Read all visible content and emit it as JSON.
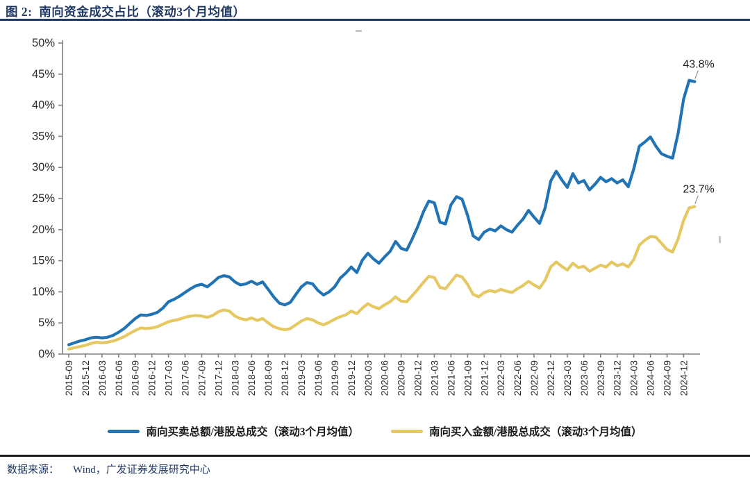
{
  "figure": {
    "title": "图 2:  南向资金成交占比（滚动3个月均值）",
    "source_label": "数据来源：",
    "source_text": "Wind，广发证券发展研究中心"
  },
  "colors": {
    "title_navy": "#1F3864",
    "line_blue": "#2273B4",
    "line_yellow": "#E6C862",
    "axis": "#808080",
    "tick_text": "#2b2b2b",
    "annotation_text": "#1a1a1a",
    "leader": "#a0a0a0"
  },
  "legend": [
    {
      "label": "南向买卖总额/港股总成交（滚动3个月均值）",
      "color": "#2273B4"
    },
    {
      "label": "南向买入金额/港股总成交（滚动3个月均值）",
      "color": "#E6C862"
    }
  ],
  "annotations": [
    {
      "text": "43.8%",
      "series_index": 0
    },
    {
      "text": "23.7%",
      "series_index": 1
    }
  ],
  "chart_data": {
    "type": "line",
    "title": "南向资金成交占比（滚动3个月均值）",
    "xlabel": "",
    "ylabel": "",
    "ylim": [
      0,
      50
    ],
    "grid": false,
    "legend_position": "bottom",
    "x_label_rotation": -90,
    "y_tick_labels": [
      "0%",
      "5%",
      "10%",
      "15%",
      "20%",
      "25%",
      "30%",
      "35%",
      "40%",
      "45%",
      "50%"
    ],
    "x_tick_labels": [
      "2015-09",
      "2015-12",
      "2016-03",
      "2016-06",
      "2016-09",
      "2016-12",
      "2017-03",
      "2017-06",
      "2017-09",
      "2017-12",
      "2018-03",
      "2018-06",
      "2018-09",
      "2018-12",
      "2019-03",
      "2019-06",
      "2019-09",
      "2019-12",
      "2020-03",
      "2020-06",
      "2020-09",
      "2020-12",
      "2021-03",
      "2021-06",
      "2021-09",
      "2021-12",
      "2022-03",
      "2022-06",
      "2022-09",
      "2022-12",
      "2023-03",
      "2023-06",
      "2023-09",
      "2023-12",
      "2024-03",
      "2024-06",
      "2024-09",
      "2024-12"
    ],
    "x": [
      "2015-09",
      "2015-10",
      "2015-11",
      "2015-12",
      "2016-01",
      "2016-02",
      "2016-03",
      "2016-04",
      "2016-05",
      "2016-06",
      "2016-07",
      "2016-08",
      "2016-09",
      "2016-10",
      "2016-11",
      "2016-12",
      "2017-01",
      "2017-02",
      "2017-03",
      "2017-04",
      "2017-05",
      "2017-06",
      "2017-07",
      "2017-08",
      "2017-09",
      "2017-10",
      "2017-11",
      "2017-12",
      "2018-01",
      "2018-02",
      "2018-03",
      "2018-04",
      "2018-05",
      "2018-06",
      "2018-07",
      "2018-08",
      "2018-09",
      "2018-10",
      "2018-11",
      "2018-12",
      "2019-01",
      "2019-02",
      "2019-03",
      "2019-04",
      "2019-05",
      "2019-06",
      "2019-07",
      "2019-08",
      "2019-09",
      "2019-10",
      "2019-11",
      "2019-12",
      "2020-01",
      "2020-02",
      "2020-03",
      "2020-04",
      "2020-05",
      "2020-06",
      "2020-07",
      "2020-08",
      "2020-09",
      "2020-10",
      "2020-11",
      "2020-12",
      "2021-01",
      "2021-02",
      "2021-03",
      "2021-04",
      "2021-05",
      "2021-06",
      "2021-07",
      "2021-08",
      "2021-09",
      "2021-10",
      "2021-11",
      "2021-12",
      "2022-01",
      "2022-02",
      "2022-03",
      "2022-04",
      "2022-05",
      "2022-06",
      "2022-07",
      "2022-08",
      "2022-09",
      "2022-10",
      "2022-11",
      "2022-12",
      "2023-01",
      "2023-02",
      "2023-03",
      "2023-04",
      "2023-05",
      "2023-06",
      "2023-07",
      "2023-08",
      "2023-09",
      "2023-10",
      "2023-11",
      "2023-12",
      "2024-01",
      "2024-02",
      "2024-03",
      "2024-04",
      "2024-05",
      "2024-06",
      "2024-07",
      "2024-08",
      "2024-09",
      "2024-10",
      "2024-11",
      "2024-12",
      "2025-01",
      "2025-02"
    ],
    "series": [
      {
        "name": "南向买卖总额/港股总成交（滚动3个月均值）",
        "color": "#2273B4",
        "end_label": "43.8%",
        "values": [
          1.5,
          1.8,
          2.1,
          2.3,
          2.6,
          2.7,
          2.6,
          2.7,
          3.0,
          3.5,
          4.1,
          4.9,
          5.7,
          6.3,
          6.2,
          6.4,
          6.7,
          7.4,
          8.4,
          8.8,
          9.3,
          9.9,
          10.5,
          11.0,
          11.2,
          10.8,
          11.5,
          12.3,
          12.6,
          12.4,
          11.6,
          11.1,
          11.3,
          11.7,
          11.2,
          11.6,
          10.4,
          9.2,
          8.2,
          7.9,
          8.3,
          9.6,
          10.8,
          11.5,
          11.3,
          10.2,
          9.5,
          10.0,
          10.8,
          12.2,
          13.0,
          14.0,
          13.1,
          15.1,
          16.2,
          15.3,
          14.6,
          15.6,
          16.5,
          18.1,
          17.0,
          16.7,
          18.5,
          20.5,
          22.8,
          24.6,
          24.3,
          21.2,
          20.9,
          24.0,
          25.3,
          24.9,
          22.3,
          19.0,
          18.4,
          19.6,
          20.1,
          19.8,
          20.6,
          20.0,
          19.6,
          20.7,
          21.7,
          23.1,
          22.0,
          21.0,
          23.5,
          27.8,
          29.4,
          28.0,
          26.8,
          29.0,
          27.5,
          27.9,
          26.4,
          27.3,
          28.4,
          27.7,
          28.2,
          27.5,
          28.0,
          26.9,
          29.8,
          33.4,
          34.1,
          34.9,
          33.4,
          32.2,
          31.8,
          31.5,
          35.5,
          41.0,
          44.0,
          43.8
        ]
      },
      {
        "name": "南向买入金额/港股总成交（滚动3个月均值）",
        "color": "#E6C862",
        "end_label": "23.7%",
        "values": [
          0.8,
          1.0,
          1.2,
          1.4,
          1.7,
          1.9,
          1.8,
          1.9,
          2.1,
          2.4,
          2.8,
          3.3,
          3.8,
          4.2,
          4.1,
          4.2,
          4.4,
          4.8,
          5.2,
          5.4,
          5.6,
          5.9,
          6.1,
          6.2,
          6.1,
          5.9,
          6.2,
          6.8,
          7.1,
          6.9,
          6.1,
          5.7,
          5.5,
          5.8,
          5.4,
          5.7,
          5.0,
          4.4,
          4.1,
          3.9,
          4.1,
          4.7,
          5.3,
          5.7,
          5.5,
          5.0,
          4.7,
          5.1,
          5.6,
          6.0,
          6.3,
          6.9,
          6.5,
          7.4,
          8.1,
          7.6,
          7.3,
          7.9,
          8.4,
          9.2,
          8.5,
          8.4,
          9.4,
          10.4,
          11.5,
          12.5,
          12.3,
          10.7,
          10.5,
          11.6,
          12.7,
          12.4,
          11.2,
          9.6,
          9.2,
          9.9,
          10.2,
          10.0,
          10.4,
          10.1,
          9.9,
          10.5,
          11.0,
          11.7,
          11.1,
          10.6,
          11.9,
          14.0,
          14.8,
          14.1,
          13.5,
          14.6,
          13.9,
          14.1,
          13.3,
          13.8,
          14.3,
          14.0,
          14.8,
          14.2,
          14.5,
          14.0,
          15.2,
          17.5,
          18.3,
          18.9,
          18.8,
          17.8,
          16.8,
          16.4,
          18.5,
          21.5,
          23.5,
          23.7
        ]
      }
    ]
  }
}
